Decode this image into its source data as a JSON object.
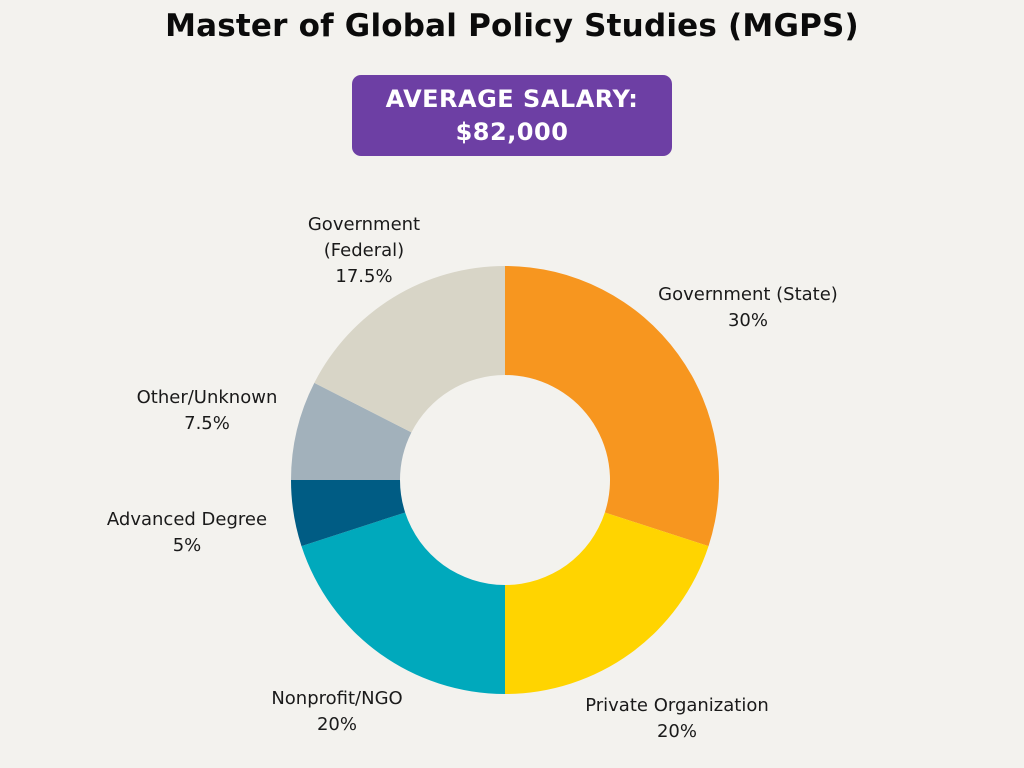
{
  "chart_data": {
    "type": "pie",
    "style": "donut",
    "title": "Master of Global Policy Studies (MGPS)",
    "annotation": {
      "line1": "AVERAGE SALARY:",
      "line2": "$82,000"
    },
    "slices": [
      {
        "label": "Government (State)",
        "value_label": "30%",
        "value": 30,
        "color": "#f7961f"
      },
      {
        "label": "Private Organization",
        "value_label": "20%",
        "value": 20,
        "color": "#ffd400"
      },
      {
        "label": "Nonprofit/NGO",
        "value_label": "20%",
        "value": 20,
        "color": "#00a9bc"
      },
      {
        "label": "Advanced Degree",
        "value_label": "5%",
        "value": 5,
        "color": "#005c84"
      },
      {
        "label": "Other/Unknown",
        "value_label": "7.5%",
        "value": 7.5,
        "color": "#a2b1bb"
      },
      {
        "label": "Government (Federal)",
        "value_label": "17.5%",
        "value": 17.5,
        "color": "#d8d5c7"
      }
    ],
    "legend": "none"
  }
}
